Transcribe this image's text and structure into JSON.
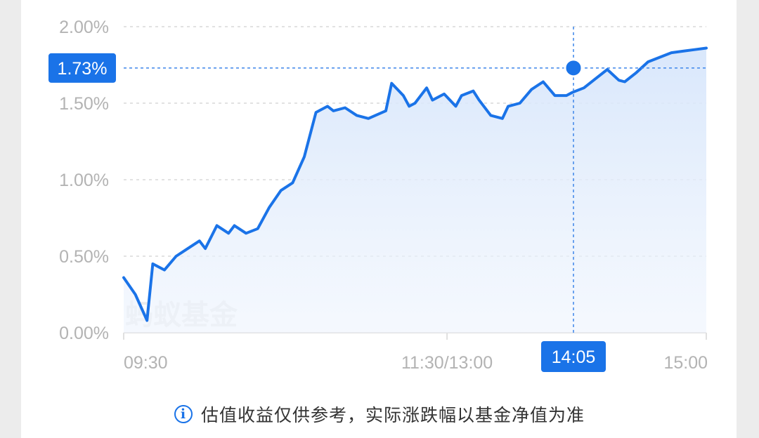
{
  "chart_data": {
    "type": "area",
    "y_ticks": [
      "2.00%",
      "1.50%",
      "1.00%",
      "0.50%",
      "0.00%"
    ],
    "ylim": [
      0,
      2.0
    ],
    "x_ticks": [
      "09:30",
      "11:30/13:00",
      "15:00"
    ],
    "watermark": "蚂蚁基金",
    "crosshair": {
      "time_label": "14:05",
      "value_label": "1.73%",
      "value": 1.73
    },
    "grid": true,
    "series": [
      {
        "color": "#1a73e8",
        "x": [
          0,
          0.02,
          0.04,
          0.05,
          0.07,
          0.09,
          0.11,
          0.13,
          0.14,
          0.16,
          0.18,
          0.19,
          0.21,
          0.23,
          0.25,
          0.27,
          0.29,
          0.31,
          0.33,
          0.35,
          0.36,
          0.38,
          0.4,
          0.42,
          0.45,
          0.46,
          0.48,
          0.49,
          0.5,
          0.51,
          0.52,
          0.53,
          0.55,
          0.57,
          0.58,
          0.6,
          0.61,
          0.63,
          0.65,
          0.66,
          0.68,
          0.7,
          0.72,
          0.74,
          0.76,
          0.77,
          0.79,
          0.81,
          0.83,
          0.85,
          0.86,
          0.88,
          0.9,
          0.92,
          0.94,
          0.96,
          0.98,
          1.0
        ],
        "y": [
          0.36,
          0.25,
          0.08,
          0.45,
          0.41,
          0.5,
          0.55,
          0.6,
          0.55,
          0.7,
          0.65,
          0.7,
          0.65,
          0.68,
          0.82,
          0.93,
          0.98,
          1.15,
          1.44,
          1.48,
          1.45,
          1.47,
          1.42,
          1.4,
          1.45,
          1.63,
          1.55,
          1.48,
          1.5,
          1.55,
          1.6,
          1.52,
          1.56,
          1.48,
          1.55,
          1.58,
          1.52,
          1.42,
          1.4,
          1.48,
          1.5,
          1.59,
          1.64,
          1.55,
          1.55,
          1.57,
          1.6,
          1.66,
          1.72,
          1.65,
          1.64,
          1.7,
          1.77,
          1.8,
          1.83,
          1.84,
          1.85,
          1.86
        ]
      }
    ]
  },
  "footer": {
    "note": "估值收益仅供参考，实际涨跌幅以基金净值为准"
  }
}
